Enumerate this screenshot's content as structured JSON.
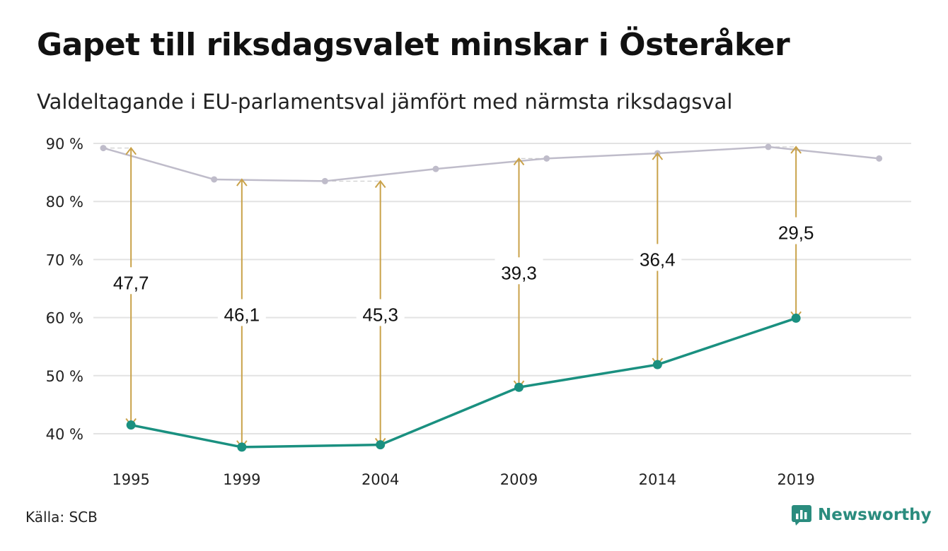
{
  "title": "Gapet till riksdagsvalet minskar i Österåker",
  "subtitle": "Valdeltagande i EU-parlamentsval jämfört med närmsta riksdagsval",
  "source": "Källa: SCB",
  "brand": {
    "name": "Newsworthy",
    "icon": "bar-chart-logo-icon"
  },
  "colors": {
    "eu": "#1a9080",
    "riksdag": "#bfbcca",
    "gap_arrow": "#c9a24a",
    "grid": "#e3e3e3",
    "text": "#111111"
  },
  "chart_data": {
    "type": "line",
    "ylim": [
      35,
      90
    ],
    "xlim": [
      1994.0,
      2022.8
    ],
    "y_ticks": [
      {
        "value": 90,
        "label": "90 %"
      },
      {
        "value": 80,
        "label": "80 %"
      },
      {
        "value": 70,
        "label": "70 %"
      },
      {
        "value": 60,
        "label": "60 %"
      },
      {
        "value": 50,
        "label": "50 %"
      },
      {
        "value": 40,
        "label": "40 %"
      }
    ],
    "x_ticks": [
      {
        "value": 1995,
        "label": "1995"
      },
      {
        "value": 1999,
        "label": "1999"
      },
      {
        "value": 2004,
        "label": "2004"
      },
      {
        "value": 2009,
        "label": "2009"
      },
      {
        "value": 2014,
        "label": "2014"
      },
      {
        "value": 2019,
        "label": "2019"
      }
    ],
    "grid": true,
    "series": [
      {
        "key": "riksdag",
        "x": [
          1994,
          1998,
          2002,
          2006,
          2010,
          2014,
          2018,
          2022
        ],
        "y": [
          89.2,
          83.8,
          83.5,
          85.6,
          87.4,
          88.3,
          89.4,
          87.4
        ]
      },
      {
        "key": "eu",
        "x": [
          1995,
          1999,
          2004,
          2009,
          2014,
          2019
        ],
        "y": [
          41.5,
          37.7,
          38.1,
          48.0,
          51.9,
          59.9
        ]
      }
    ],
    "gaps": [
      {
        "x": 1995,
        "from": 89.2,
        "to": 41.5,
        "label": "47,7",
        "label_y": 66.0
      },
      {
        "x": 1999,
        "from": 83.8,
        "to": 37.7,
        "label": "46,1",
        "label_y": 60.5
      },
      {
        "x": 2004,
        "from": 83.5,
        "to": 38.1,
        "label": "45,3",
        "label_y": 60.5
      },
      {
        "x": 2009,
        "from": 87.4,
        "to": 48.0,
        "label": "39,3",
        "label_y": 67.7
      },
      {
        "x": 2014,
        "from": 88.3,
        "to": 51.9,
        "label": "36,4",
        "label_y": 70.0
      },
      {
        "x": 2019,
        "from": 89.4,
        "to": 59.9,
        "label": "29,5",
        "label_y": 74.6
      }
    ]
  }
}
